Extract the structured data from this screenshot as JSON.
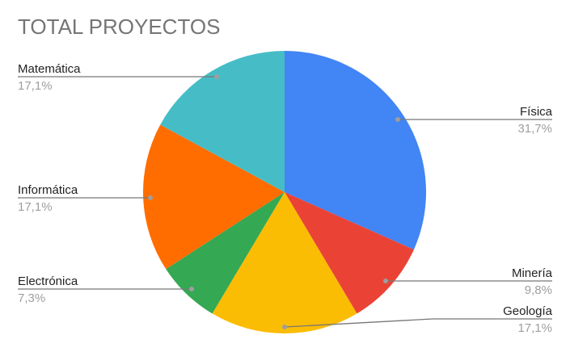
{
  "chart_data": {
    "type": "pie",
    "title": "TOTAL PROYECTOS",
    "legend": "labels with leader lines",
    "start_angle": "top, clockwise",
    "slices": [
      {
        "label": "Física",
        "value": 31.7,
        "display": "31,7%",
        "color": "#4285F4"
      },
      {
        "label": "Minería",
        "value": 9.8,
        "display": "9,8%",
        "color": "#EA4335"
      },
      {
        "label": "Geología",
        "value": 17.1,
        "display": "17,1%",
        "color": "#FBBC04"
      },
      {
        "label": "Electrónica",
        "value": 7.3,
        "display": "7,3%",
        "color": "#34A853"
      },
      {
        "label": "Informática",
        "value": 17.1,
        "display": "17,1%",
        "color": "#FF6D01"
      },
      {
        "label": "Matemática",
        "value": 17.1,
        "display": "17,1%",
        "color": "#46BDC6"
      }
    ]
  }
}
